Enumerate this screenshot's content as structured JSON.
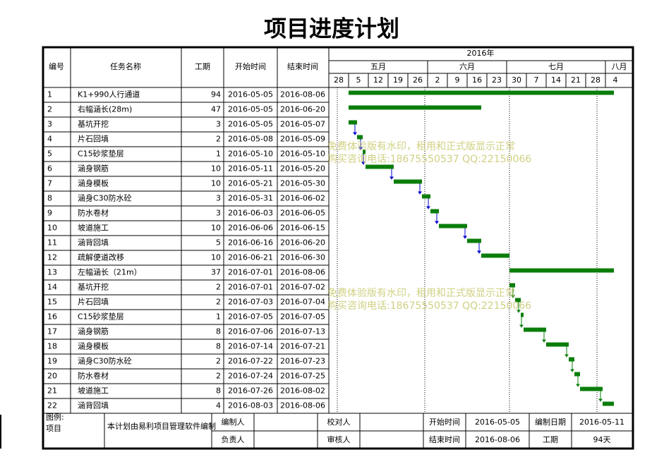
{
  "header": {
    "title": "项目进度计划"
  },
  "table": {
    "columns": [
      "编号",
      "任务名称",
      "工期",
      "开始时间",
      "结束时间"
    ],
    "rows": [
      [
        "1",
        "K1+990人行通道",
        94,
        "2016-05-05",
        "2016-08-06"
      ],
      [
        "2",
        "右幅涵长(28m)",
        47,
        "2016-05-05",
        "2016-06-20"
      ],
      [
        "3",
        "基坑开挖",
        3,
        "2016-05-05",
        "2016-05-07"
      ],
      [
        "4",
        "片石回填",
        2,
        "2016-05-08",
        "2016-05-09"
      ],
      [
        "5",
        "C15砂浆垫层",
        1,
        "2016-05-10",
        "2016-05-10"
      ],
      [
        "6",
        "涵身钢筋",
        10,
        "2016-05-11",
        "2016-05-20"
      ],
      [
        "7",
        "涵身模板",
        10,
        "2016-05-21",
        "2016-05-30"
      ],
      [
        "8",
        "涵身C30防水砼",
        3,
        "2016-05-31",
        "2016-06-02"
      ],
      [
        "9",
        "防水卷材",
        3,
        "2016-06-03",
        "2016-06-05"
      ],
      [
        "10",
        "坡道施工",
        10,
        "2016-06-06",
        "2016-06-15"
      ],
      [
        "11",
        "涵背回填",
        5,
        "2016-06-16",
        "2016-06-20"
      ],
      [
        "12",
        "疏解便道改移",
        10,
        "2016-06-21",
        "2016-06-30"
      ],
      [
        "13",
        "左幅涵长（21m）",
        37,
        "2016-07-01",
        "2016-08-06"
      ],
      [
        "14",
        "基坑开挖",
        2,
        "2016-07-01",
        "2016-07-02"
      ],
      [
        "15",
        "片石回填",
        2,
        "2016-07-03",
        "2016-07-04"
      ],
      [
        "16",
        "C15砂浆垫层",
        1,
        "2016-07-05",
        "2016-07-05"
      ],
      [
        "17",
        "涵身钢筋",
        8,
        "2016-07-06",
        "2016-07-13"
      ],
      [
        "18",
        "涵身模板",
        8,
        "2016-07-14",
        "2016-07-21"
      ],
      [
        "19",
        "涵身C30防水砼",
        2,
        "2016-07-22",
        "2016-07-23"
      ],
      [
        "20",
        "防水卷材",
        2,
        "2016-07-24",
        "2016-07-25"
      ],
      [
        "21",
        "坡道施工",
        8,
        "2016-07-26",
        "2016-08-02"
      ],
      [
        "22",
        "涵背回填",
        4,
        "2016-08-03",
        "2016-08-06"
      ]
    ]
  },
  "timeline": {
    "year": "2016年",
    "months": [
      "五月",
      "六月",
      "七月",
      "八月"
    ],
    "days": [
      "28",
      "5",
      "12",
      "19",
      "26",
      "2",
      "9",
      "16",
      "23",
      "30",
      "7",
      "14",
      "21",
      "28",
      "4"
    ]
  },
  "watermark": [
    "免费体验版有水印，租用和正式版显示正常",
    "购买咨询电话:18675550537 QQ:22150066"
  ],
  "footer": {
    "legend": "图例:",
    "legend_item": "项目",
    "note": "本计划由易利项目管理软件编制",
    "editor": "编制人",
    "checker": "校对人",
    "start_label": "开始时间",
    "start": "2016-05-05",
    "date_label": "编制日期",
    "date": "2016-05-11",
    "owner": "负责人",
    "reviewer": "审核人",
    "end_label": "结束时间",
    "end": "2016-08-06",
    "duration_label": "工期",
    "duration": "94天"
  }
}
